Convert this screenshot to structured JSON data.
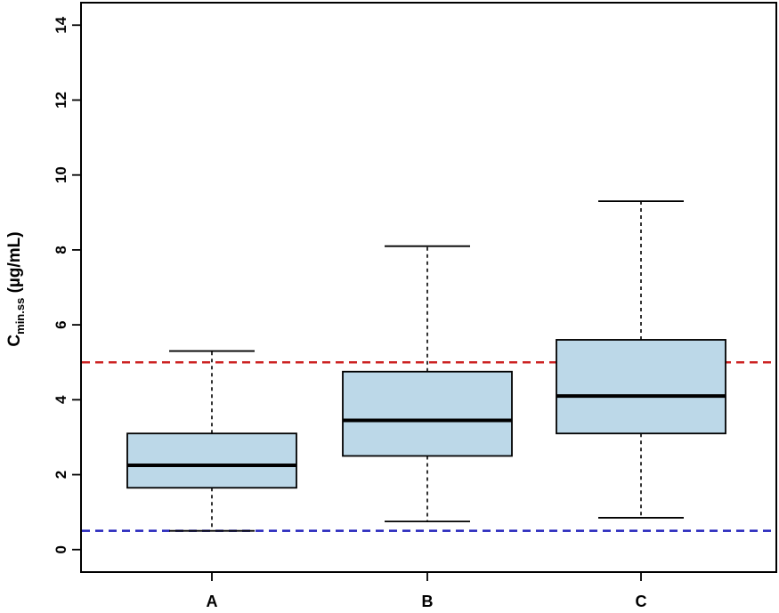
{
  "chart_data": {
    "type": "boxplot",
    "categories": [
      "A",
      "B",
      "C"
    ],
    "boxes": [
      {
        "category": "A",
        "whisker_low": 0.5,
        "q1": 1.65,
        "median": 2.25,
        "q3": 3.1,
        "whisker_high": 5.3
      },
      {
        "category": "B",
        "whisker_low": 0.75,
        "q1": 2.5,
        "median": 3.45,
        "q3": 4.75,
        "whisker_high": 8.1
      },
      {
        "category": "C",
        "whisker_low": 0.85,
        "q1": 3.1,
        "median": 4.1,
        "q3": 5.6,
        "whisker_high": 9.3
      }
    ],
    "reference_lines": [
      {
        "y": 5.0,
        "color": "#cc2222",
        "style": "dashed"
      },
      {
        "y": 0.5,
        "color": "#2222bb",
        "style": "dashed"
      }
    ],
    "ylabel": {
      "main": "C",
      "subscript": "min.ss",
      "unit": " (µg/mL)"
    },
    "yticks": [
      0,
      2,
      4,
      6,
      8,
      10,
      12,
      14
    ],
    "ylim": [
      -0.6,
      14.6
    ],
    "box_fill": "#bcd8e8",
    "grid": false
  }
}
